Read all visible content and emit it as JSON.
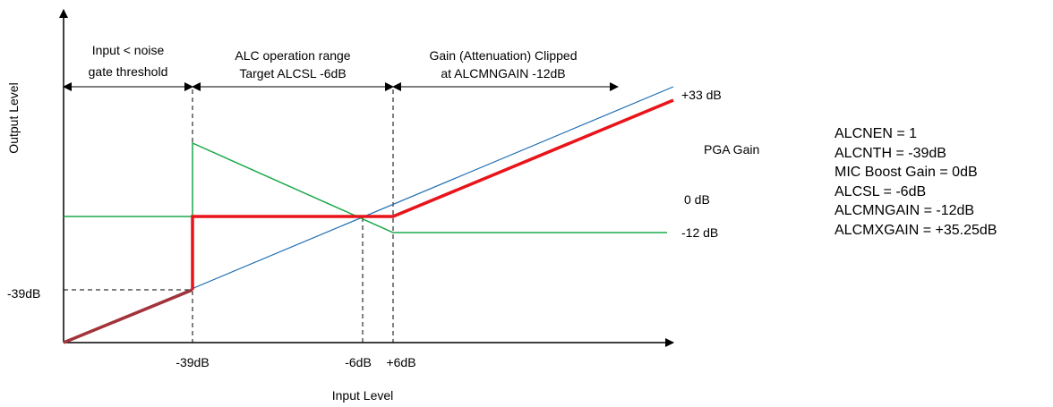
{
  "axes": {
    "y_label": "Output Level",
    "x_label": "Input Level"
  },
  "regions": {
    "noise_gate": [
      "Input < noise",
      "gate threshold"
    ],
    "alc_range": [
      "ALC operation range",
      "Target ALCSL -6dB"
    ],
    "clipped": [
      "Gain (Attenuation) Clipped",
      "at ALCMNGAIN -12dB"
    ]
  },
  "x_ticks": [
    "-39dB",
    "-6dB",
    "+6dB"
  ],
  "y_ticks": [
    "-39dB"
  ],
  "gain_labels": {
    "max": "+33 dB",
    "pga_gain": "PGA Gain",
    "zero": "0 dB",
    "min": "-12 dB"
  },
  "settings": [
    "ALCNEN = 1",
    "ALCNTH = -39dB",
    "MIC Boost Gain = 0dB",
    "ALCSL = -6dB",
    "ALCMNGAIN = -12dB",
    "ALCMXGAIN = +35.25dB"
  ],
  "colors": {
    "output": "#e8141a",
    "input_reference": "#1f6fb4",
    "pga_gain": "#1aa84a",
    "axis": "#000000",
    "below_threshold": "#a3333a"
  }
}
